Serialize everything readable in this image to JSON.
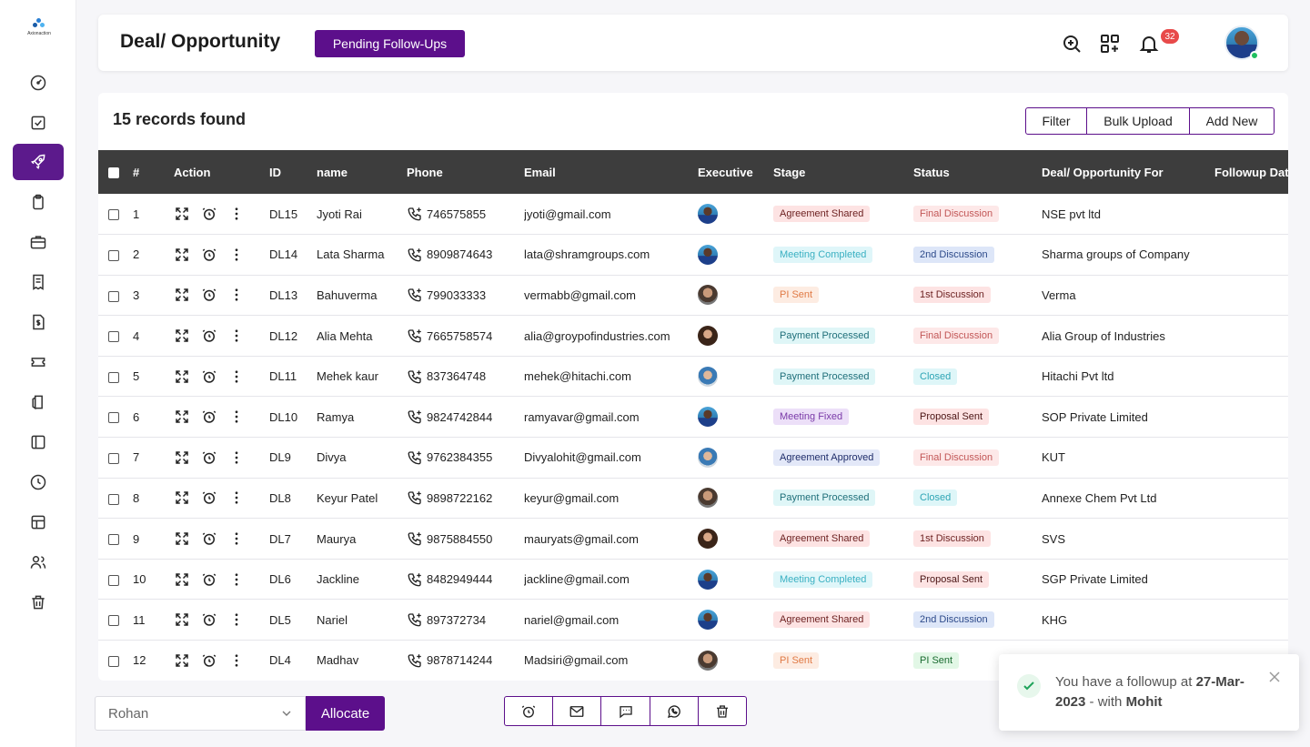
{
  "brand": {
    "logo_text": "Axionaction"
  },
  "header": {
    "title": "Deal/ Opportunity",
    "pending_label": "Pending Follow-Ups",
    "notification_count": "32"
  },
  "sidebar": {
    "items": [
      {
        "icon": "dashboard-icon",
        "active": false
      },
      {
        "icon": "task-icon",
        "active": false
      },
      {
        "icon": "rocket-icon",
        "active": true
      },
      {
        "icon": "clipboard-icon",
        "active": false
      },
      {
        "icon": "briefcase-icon",
        "active": false
      },
      {
        "icon": "receipt-icon",
        "active": false
      },
      {
        "icon": "invoice-icon",
        "active": false
      },
      {
        "icon": "ticket-icon",
        "active": false
      },
      {
        "icon": "documents-icon",
        "active": false
      },
      {
        "icon": "panel-icon",
        "active": false
      },
      {
        "icon": "clock-icon",
        "active": false
      },
      {
        "icon": "table-icon",
        "active": false
      },
      {
        "icon": "users-icon",
        "active": false
      },
      {
        "icon": "trash-icon",
        "active": false
      }
    ]
  },
  "main": {
    "records_text": "15 records found",
    "buttons": {
      "filter": "Filter",
      "bulk_upload": "Bulk Upload",
      "add_new": "Add New"
    },
    "columns": [
      "#",
      "Action",
      "ID",
      "name",
      "Phone",
      "Email",
      "Executive",
      "Stage",
      "Status",
      "Deal/ Opportunity For",
      "Followup Date"
    ],
    "rows": [
      {
        "num": "1",
        "id": "DL15",
        "name": "Jyoti Rai",
        "phone": "746575855",
        "email": "jyoti@gmail.com",
        "avatar": "a",
        "stage": "Agreement Shared",
        "stage_style": "red",
        "status": "Final Discussion",
        "status_style": "redlight",
        "deal_for": "NSE pvt ltd"
      },
      {
        "num": "2",
        "id": "DL14",
        "name": "Lata Sharma",
        "phone": "8909874643",
        "email": "lata@shramgroups.com",
        "avatar": "a",
        "stage": "Meeting Completed",
        "stage_style": "cyan",
        "status": "2nd Discussion",
        "status_style": "blue",
        "deal_for": "Sharma groups of Company"
      },
      {
        "num": "3",
        "id": "DL13",
        "name": "Bahuverma",
        "phone": "799033333",
        "email": "vermabb@gmail.com",
        "avatar": "b",
        "stage": "PI Sent",
        "stage_style": "orange",
        "status": "1st Discussion",
        "status_style": "red",
        "deal_for": "Verma"
      },
      {
        "num": "4",
        "id": "DL12",
        "name": "Alia Mehta",
        "phone": "7665758574",
        "email": "alia@groypofindustries.com",
        "avatar": "c",
        "stage": "Payment Processed",
        "stage_style": "teal",
        "status": "Final Discussion",
        "status_style": "redlight",
        "deal_for": "Alia Group of Industries"
      },
      {
        "num": "5",
        "id": "DL11",
        "name": "Mehek kaur",
        "phone": "837364748",
        "email": "mehek@hitachi.com",
        "avatar": "d",
        "stage": "Payment Processed",
        "stage_style": "teal",
        "status": "Closed",
        "status_style": "cyanlight",
        "deal_for": "Hitachi Pvt ltd"
      },
      {
        "num": "6",
        "id": "DL10",
        "name": "Ramya",
        "phone": "9824742844",
        "email": "ramyavar@gmail.com",
        "avatar": "a",
        "stage": "Meeting Fixed",
        "stage_style": "purple",
        "status": "Proposal Sent",
        "status_style": "reddark",
        "deal_for": "SOP Private Limited"
      },
      {
        "num": "7",
        "id": "DL9",
        "name": "Divya",
        "phone": "9762384355",
        "email": "Divyalohit@gmail.com",
        "avatar": "d",
        "stage": "Agreement Approved",
        "stage_style": "indigo",
        "status": "Final Discussion",
        "status_style": "redlight",
        "deal_for": "KUT"
      },
      {
        "num": "8",
        "id": "DL8",
        "name": "Keyur Patel",
        "phone": "9898722162",
        "email": "keyur@gmail.com",
        "avatar": "b",
        "stage": "Payment Processed",
        "stage_style": "teal",
        "status": "Closed",
        "status_style": "cyanlight",
        "deal_for": "Annexe Chem Pvt Ltd"
      },
      {
        "num": "9",
        "id": "DL7",
        "name": "Maurya",
        "phone": "9875884550",
        "email": "mauryats@gmail.com",
        "avatar": "c",
        "stage": "Agreement Shared",
        "stage_style": "red",
        "status": "1st Discussion",
        "status_style": "red",
        "deal_for": "SVS"
      },
      {
        "num": "10",
        "id": "DL6",
        "name": "Jackline",
        "phone": "8482949444",
        "email": "jackline@gmail.com",
        "avatar": "a",
        "stage": "Meeting Completed",
        "stage_style": "cyan",
        "status": "Proposal Sent",
        "status_style": "reddark",
        "deal_for": "SGP Private Limited"
      },
      {
        "num": "11",
        "id": "DL5",
        "name": "Nariel",
        "phone": "897372734",
        "email": "nariel@gmail.com",
        "avatar": "a",
        "stage": "Agreement Shared",
        "stage_style": "red",
        "status": "2nd Discussion",
        "status_style": "blue",
        "deal_for": "KHG"
      },
      {
        "num": "12",
        "id": "DL4",
        "name": "Madhav",
        "phone": "9878714244",
        "email": "Madsiri@gmail.com",
        "avatar": "b",
        "stage": "PI Sent",
        "stage_style": "orange",
        "status": "PI Sent",
        "status_style": "green",
        "deal_for": ""
      }
    ]
  },
  "bottom": {
    "executive_value": "Rohan",
    "allocate_label": "Allocate"
  },
  "toast": {
    "prefix": "You have a followup at ",
    "date": "27-Mar-2023",
    "middle": " - with ",
    "person": "Mohit"
  },
  "colors": {
    "accent": "#5c0f8b",
    "header_bg": "#3d3d3d"
  }
}
